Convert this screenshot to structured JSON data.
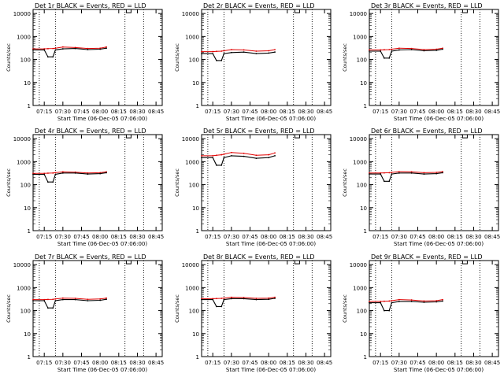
{
  "chart_data": [
    {
      "type": "line",
      "title": "Det 1r BLACK = Events, RED = LLD",
      "xlabel": "Start Time (06-Dec-05 07:06:00)",
      "ylabel": "Counts/sec",
      "x_ticks": [
        "07:15",
        "07:30",
        "07:45",
        "08:00",
        "08:15",
        "08:30",
        "08:45"
      ],
      "y_ticks": [
        "1",
        "10",
        "100",
        "1000",
        "10000"
      ],
      "xlim": [
        "07:06",
        "08:50"
      ],
      "ylim": [
        1,
        15000
      ],
      "yscale": "log",
      "dotted_lines": [
        "07:11",
        "07:24",
        "08:20",
        "08:35"
      ],
      "marker_time": "08:23",
      "series": [
        {
          "name": "BLACK = Events",
          "x": [
            "07:06",
            "07:15",
            "07:18",
            "07:22",
            "07:24",
            "07:30",
            "07:40",
            "07:50",
            "08:00",
            "08:05"
          ],
          "y": [
            260,
            260,
            130,
            130,
            260,
            290,
            300,
            270,
            280,
            310
          ]
        },
        {
          "name": "RED = LLD",
          "x": [
            "07:06",
            "07:15",
            "07:18",
            "07:22",
            "07:24",
            "07:30",
            "07:40",
            "07:50",
            "08:00",
            "08:05"
          ],
          "y": [
            290,
            290,
            295,
            300,
            310,
            350,
            330,
            300,
            310,
            350
          ]
        }
      ]
    },
    {
      "type": "line",
      "title": "Det 2r BLACK = Events, RED = LLD",
      "xlabel": "Start Time (06-Dec-05 07:06:00)",
      "ylabel": "Counts/sec",
      "x_ticks": [
        "07:15",
        "07:30",
        "07:45",
        "08:00",
        "08:15",
        "08:30",
        "08:45"
      ],
      "y_ticks": [
        "1",
        "10",
        "100",
        "1000",
        "10000"
      ],
      "xlim": [
        "07:06",
        "08:50"
      ],
      "ylim": [
        1,
        15000
      ],
      "yscale": "log",
      "dotted_lines": [
        "07:11",
        "07:24",
        "08:20",
        "08:35"
      ],
      "marker_time": "08:23",
      "series": [
        {
          "name": "BLACK = Events",
          "x": [
            "07:06",
            "07:15",
            "07:18",
            "07:22",
            "07:24",
            "07:30",
            "07:40",
            "07:50",
            "08:00",
            "08:05"
          ],
          "y": [
            180,
            180,
            90,
            90,
            180,
            200,
            210,
            180,
            190,
            210
          ]
        },
        {
          "name": "RED = LLD",
          "x": [
            "07:06",
            "07:15",
            "07:18",
            "07:22",
            "07:24",
            "07:30",
            "07:40",
            "07:50",
            "08:00",
            "08:05"
          ],
          "y": [
            220,
            220,
            225,
            230,
            240,
            270,
            260,
            230,
            240,
            270
          ]
        }
      ]
    },
    {
      "type": "line",
      "title": "Det 3r BLACK = Events, RED = LLD",
      "xlabel": "Start Time (06-Dec-05 07:06:00)",
      "ylabel": "Counts/sec",
      "x_ticks": [
        "07:15",
        "07:30",
        "07:45",
        "08:00",
        "08:15",
        "08:30",
        "08:45"
      ],
      "y_ticks": [
        "1",
        "10",
        "100",
        "1000",
        "10000"
      ],
      "xlim": [
        "07:06",
        "08:50"
      ],
      "ylim": [
        1,
        15000
      ],
      "yscale": "log",
      "dotted_lines": [
        "07:11",
        "07:24",
        "08:20",
        "08:35"
      ],
      "marker_time": "08:23",
      "series": [
        {
          "name": "BLACK = Events",
          "x": [
            "07:06",
            "07:15",
            "07:18",
            "07:22",
            "07:24",
            "07:30",
            "07:40",
            "07:50",
            "08:00",
            "08:05"
          ],
          "y": [
            230,
            230,
            115,
            115,
            230,
            260,
            270,
            240,
            250,
            280
          ]
        },
        {
          "name": "RED = LLD",
          "x": [
            "07:06",
            "07:15",
            "07:18",
            "07:22",
            "07:24",
            "07:30",
            "07:40",
            "07:50",
            "08:00",
            "08:05"
          ],
          "y": [
            260,
            260,
            265,
            270,
            280,
            310,
            300,
            270,
            280,
            310
          ]
        }
      ]
    },
    {
      "type": "line",
      "title": "Det 4r BLACK = Events, RED = LLD",
      "xlabel": "Start Time (06-Dec-05 07:06:00)",
      "ylabel": "Counts/sec",
      "x_ticks": [
        "07:15",
        "07:30",
        "07:45",
        "08:00",
        "08:15",
        "08:30",
        "08:45"
      ],
      "y_ticks": [
        "1",
        "10",
        "100",
        "1000",
        "10000"
      ],
      "xlim": [
        "07:06",
        "08:50"
      ],
      "ylim": [
        1,
        15000
      ],
      "yscale": "log",
      "dotted_lines": [
        "07:11",
        "07:24",
        "08:20",
        "08:35"
      ],
      "marker_time": "08:23",
      "series": [
        {
          "name": "BLACK = Events",
          "x": [
            "07:06",
            "07:15",
            "07:18",
            "07:22",
            "07:24",
            "07:30",
            "07:40",
            "07:50",
            "08:00",
            "08:05"
          ],
          "y": [
            280,
            280,
            130,
            130,
            280,
            320,
            320,
            290,
            300,
            330
          ]
        },
        {
          "name": "RED = LLD",
          "x": [
            "07:06",
            "07:15",
            "07:18",
            "07:22",
            "07:24",
            "07:30",
            "07:40",
            "07:50",
            "08:00",
            "08:05"
          ],
          "y": [
            310,
            310,
            315,
            320,
            330,
            360,
            350,
            320,
            330,
            360
          ]
        }
      ]
    },
    {
      "type": "line",
      "title": "Det 5r BLACK = Events, RED = LLD",
      "xlabel": "Start Time (06-Dec-05 07:06:00)",
      "ylabel": "Counts/sec",
      "x_ticks": [
        "07:15",
        "07:30",
        "07:45",
        "08:00",
        "08:15",
        "08:30",
        "08:45"
      ],
      "y_ticks": [
        "1",
        "10",
        "100",
        "1000",
        "10000"
      ],
      "xlim": [
        "07:06",
        "08:50"
      ],
      "ylim": [
        1,
        15000
      ],
      "yscale": "log",
      "dotted_lines": [
        "07:11",
        "07:24",
        "08:20",
        "08:35"
      ],
      "marker_time": "08:23",
      "series": [
        {
          "name": "BLACK = Events",
          "x": [
            "07:06",
            "07:15",
            "07:18",
            "07:22",
            "07:24",
            "07:30",
            "07:40",
            "07:50",
            "08:00",
            "08:05"
          ],
          "y": [
            1500,
            1500,
            700,
            700,
            1500,
            1800,
            1700,
            1400,
            1500,
            1800
          ]
        },
        {
          "name": "RED = LLD",
          "x": [
            "07:06",
            "07:15",
            "07:18",
            "07:22",
            "07:24",
            "07:30",
            "07:40",
            "07:50",
            "08:00",
            "08:05"
          ],
          "y": [
            1800,
            1800,
            1900,
            2000,
            2100,
            2500,
            2300,
            1900,
            2000,
            2400
          ]
        }
      ]
    },
    {
      "type": "line",
      "title": "Det 6r BLACK = Events, RED = LLD",
      "xlabel": "Start Time (06-Dec-05 07:06:00)",
      "ylabel": "Counts/sec",
      "x_ticks": [
        "07:15",
        "07:30",
        "07:45",
        "08:00",
        "08:15",
        "08:30",
        "08:45"
      ],
      "y_ticks": [
        "1",
        "10",
        "100",
        "1000",
        "10000"
      ],
      "xlim": [
        "07:06",
        "08:50"
      ],
      "ylim": [
        1,
        15000
      ],
      "yscale": "log",
      "dotted_lines": [
        "07:11",
        "07:24",
        "08:20",
        "08:35"
      ],
      "marker_time": "08:23",
      "series": [
        {
          "name": "BLACK = Events",
          "x": [
            "07:06",
            "07:15",
            "07:18",
            "07:22",
            "07:24",
            "07:30",
            "07:40",
            "07:50",
            "08:00",
            "08:05"
          ],
          "y": [
            290,
            290,
            140,
            140,
            290,
            320,
            320,
            290,
            300,
            330
          ]
        },
        {
          "name": "RED = LLD",
          "x": [
            "07:06",
            "07:15",
            "07:18",
            "07:22",
            "07:24",
            "07:30",
            "07:40",
            "07:50",
            "08:00",
            "08:05"
          ],
          "y": [
            320,
            320,
            325,
            330,
            340,
            370,
            360,
            330,
            340,
            370
          ]
        }
      ]
    },
    {
      "type": "line",
      "title": "Det 7r BLACK = Events, RED = LLD",
      "xlabel": "Start Time (06-Dec-05 07:06:00)",
      "ylabel": "Counts/sec",
      "x_ticks": [
        "07:15",
        "07:30",
        "07:45",
        "08:00",
        "08:15",
        "08:30",
        "08:45"
      ],
      "y_ticks": [
        "1",
        "10",
        "100",
        "1000",
        "10000"
      ],
      "xlim": [
        "07:06",
        "08:50"
      ],
      "ylim": [
        1,
        15000
      ],
      "yscale": "log",
      "dotted_lines": [
        "07:11",
        "07:24",
        "08:20",
        "08:35"
      ],
      "marker_time": "08:23",
      "series": [
        {
          "name": "BLACK = Events",
          "x": [
            "07:06",
            "07:15",
            "07:18",
            "07:22",
            "07:24",
            "07:30",
            "07:40",
            "07:50",
            "08:00",
            "08:05"
          ],
          "y": [
            270,
            270,
            130,
            130,
            270,
            300,
            300,
            270,
            280,
            310
          ]
        },
        {
          "name": "RED = LLD",
          "x": [
            "07:06",
            "07:15",
            "07:18",
            "07:22",
            "07:24",
            "07:30",
            "07:40",
            "07:50",
            "08:00",
            "08:05"
          ],
          "y": [
            300,
            300,
            305,
            310,
            320,
            350,
            340,
            310,
            320,
            350
          ]
        }
      ]
    },
    {
      "type": "line",
      "title": "Det 8r BLACK = Events, RED = LLD",
      "xlabel": "Start Time (06-Dec-05 07:06:00)",
      "ylabel": "Counts/sec",
      "x_ticks": [
        "07:15",
        "07:30",
        "07:45",
        "08:00",
        "08:15",
        "08:30",
        "08:45"
      ],
      "y_ticks": [
        "1",
        "10",
        "100",
        "1000",
        "10000"
      ],
      "xlim": [
        "07:06",
        "08:50"
      ],
      "ylim": [
        1,
        15000
      ],
      "yscale": "log",
      "dotted_lines": [
        "07:11",
        "07:24",
        "08:20",
        "08:35"
      ],
      "marker_time": "08:23",
      "series": [
        {
          "name": "BLACK = Events",
          "x": [
            "07:06",
            "07:15",
            "07:18",
            "07:22",
            "07:24",
            "07:30",
            "07:40",
            "07:50",
            "08:00",
            "08:05"
          ],
          "y": [
            300,
            300,
            150,
            150,
            300,
            330,
            330,
            300,
            310,
            340
          ]
        },
        {
          "name": "RED = LLD",
          "x": [
            "07:06",
            "07:15",
            "07:18",
            "07:22",
            "07:24",
            "07:30",
            "07:40",
            "07:50",
            "08:00",
            "08:05"
          ],
          "y": [
            330,
            330,
            335,
            340,
            350,
            380,
            370,
            340,
            350,
            380
          ]
        }
      ]
    },
    {
      "type": "line",
      "title": "Det 9r BLACK = Events, RED = LLD",
      "xlabel": "Start Time (06-Dec-05 07:06:00)",
      "ylabel": "Counts/sec",
      "x_ticks": [
        "07:15",
        "07:30",
        "07:45",
        "08:00",
        "08:15",
        "08:30",
        "08:45"
      ],
      "y_ticks": [
        "1",
        "10",
        "100",
        "1000",
        "10000"
      ],
      "xlim": [
        "07:06",
        "08:50"
      ],
      "ylim": [
        1,
        15000
      ],
      "yscale": "log",
      "dotted_lines": [
        "07:11",
        "07:24",
        "08:20",
        "08:35"
      ],
      "marker_time": "08:23",
      "series": [
        {
          "name": "BLACK = Events",
          "x": [
            "07:06",
            "07:15",
            "07:18",
            "07:22",
            "07:24",
            "07:30",
            "07:40",
            "07:50",
            "08:00",
            "08:05"
          ],
          "y": [
            220,
            220,
            100,
            100,
            220,
            250,
            250,
            230,
            240,
            260
          ]
        },
        {
          "name": "RED = LLD",
          "x": [
            "07:06",
            "07:15",
            "07:18",
            "07:22",
            "07:24",
            "07:30",
            "07:40",
            "07:50",
            "08:00",
            "08:05"
          ],
          "y": [
            250,
            250,
            255,
            260,
            270,
            300,
            290,
            260,
            270,
            300
          ]
        }
      ]
    }
  ],
  "colors": {
    "events": "#000000",
    "lld": "#e00000",
    "axes": "#000000",
    "background": "#ffffff"
  }
}
